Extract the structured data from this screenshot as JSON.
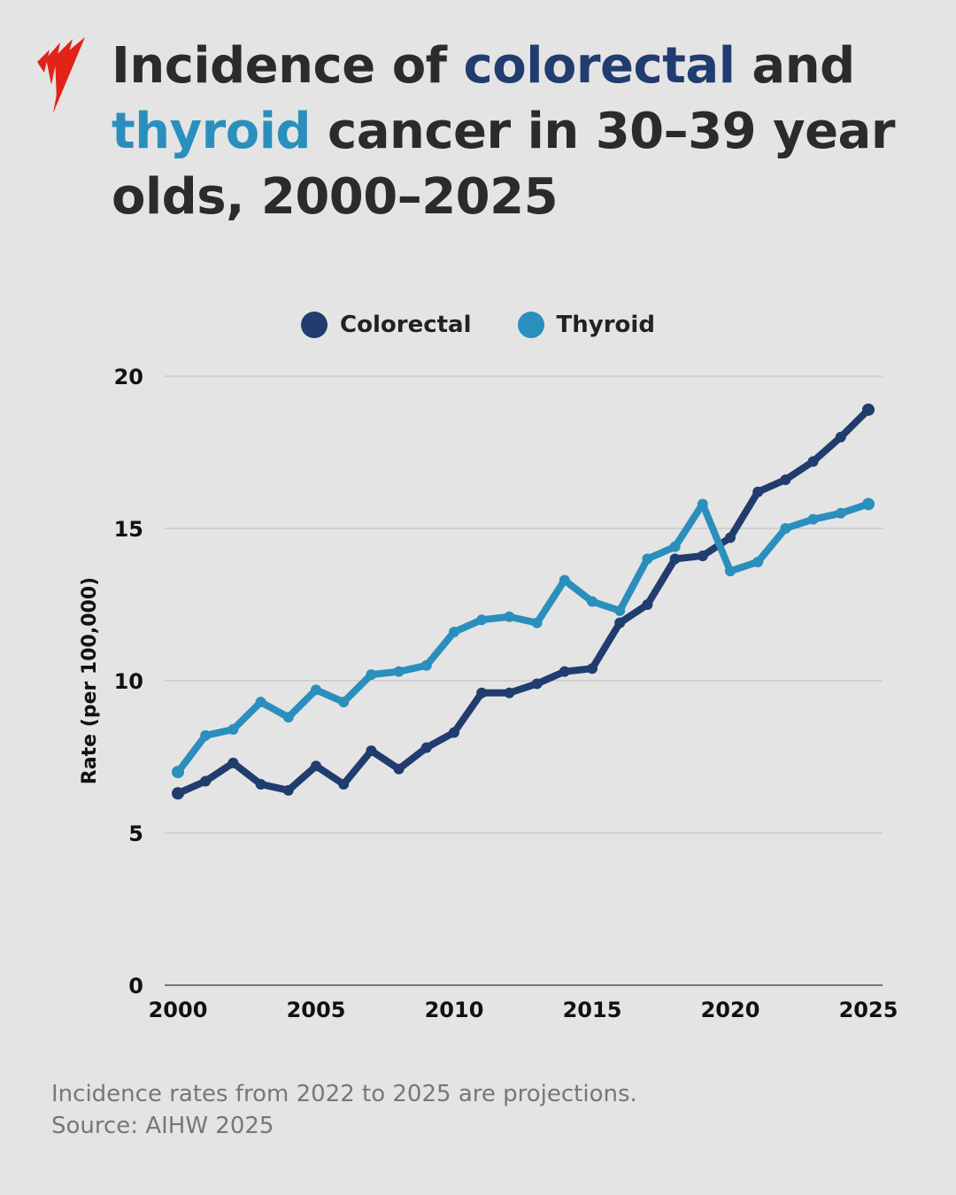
{
  "title": {
    "pre": "Incidence of ",
    "hl1": "colorectal",
    "mid": " and ",
    "hl2": "thyroid",
    "post": " cancer in 30–39 year olds, 2000–2025"
  },
  "colors": {
    "colorectal": "#213c6e",
    "thyroid": "#2b8fbd",
    "logo": "#e2231a"
  },
  "chart_data": {
    "type": "line",
    "title": "",
    "xlabel": "",
    "ylabel": "Rate (per 100,000)",
    "xlim": [
      2000,
      2025
    ],
    "ylim": [
      0,
      20
    ],
    "xticks": [
      "2000",
      "2005",
      "2010",
      "2015",
      "2020",
      "2025"
    ],
    "yticks": [
      "0",
      "5",
      "10",
      "15",
      "20"
    ],
    "grid": "horizontal",
    "legend": "top-center",
    "x": [
      2000,
      2001,
      2002,
      2003,
      2004,
      2005,
      2006,
      2007,
      2008,
      2009,
      2010,
      2011,
      2012,
      2013,
      2014,
      2015,
      2016,
      2017,
      2018,
      2019,
      2020,
      2021,
      2022,
      2023,
      2024,
      2025
    ],
    "series": [
      {
        "name": "Colorectal",
        "color": "#213c6e",
        "values": [
          6.3,
          6.7,
          7.3,
          6.6,
          6.4,
          7.2,
          6.6,
          7.7,
          7.1,
          7.8,
          8.3,
          9.6,
          9.6,
          9.9,
          10.3,
          10.4,
          11.9,
          12.5,
          14.0,
          14.1,
          14.7,
          16.2,
          16.6,
          17.2,
          18.0,
          18.9
        ]
      },
      {
        "name": "Thyroid",
        "color": "#2b8fbd",
        "values": [
          7.0,
          8.2,
          8.4,
          9.3,
          8.8,
          9.7,
          9.3,
          10.2,
          10.3,
          10.5,
          11.6,
          12.0,
          12.1,
          11.9,
          13.3,
          12.6,
          12.3,
          14.0,
          14.4,
          15.8,
          13.6,
          13.9,
          15.0,
          15.3,
          15.5,
          15.8
        ]
      }
    ]
  },
  "footer": {
    "note": "Incidence rates from 2022 to 2025 are projections.",
    "source": "Source: AIHW 2025"
  }
}
